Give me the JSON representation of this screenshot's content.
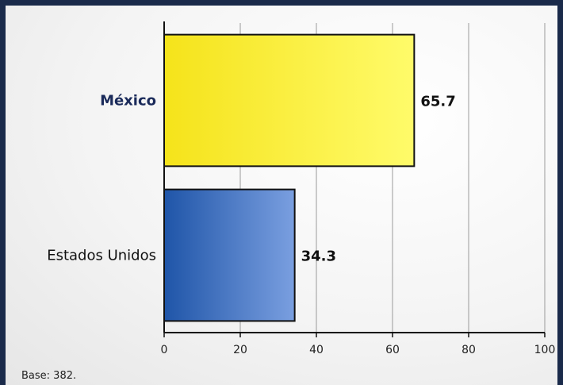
{
  "chart_data": {
    "type": "bar",
    "orientation": "horizontal",
    "categories": [
      "México",
      "Estados Unidos"
    ],
    "values": [
      65.7,
      34.3
    ],
    "value_labels": [
      "65.7",
      "34.3"
    ],
    "xlim": [
      0,
      100
    ],
    "x_ticks": [
      0,
      20,
      40,
      60,
      80,
      100
    ],
    "x_tick_labels": [
      "0",
      "20",
      "40",
      "60",
      "80",
      "100"
    ],
    "grid": "vertical",
    "title": "",
    "xlabel": "",
    "ylabel": "",
    "colors": {
      "México": [
        "#f5e31a",
        "#fffb6a"
      ],
      "Estados Unidos": [
        "#1f55a8",
        "#7a9fe0"
      ]
    },
    "category_label_colors": [
      "#1a2a5a",
      "#111111"
    ],
    "category_label_weights": [
      "bold",
      "normal"
    ]
  },
  "footnote": "Base: 382."
}
